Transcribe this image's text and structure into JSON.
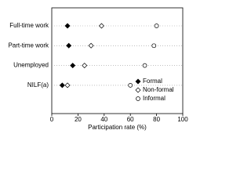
{
  "chart_data": {
    "type": "dot",
    "xlabel": "Participation rate (%)",
    "categories": [
      "Full-time work",
      "Part-time work",
      "Unemployed",
      "NILF(a)"
    ],
    "series": [
      {
        "name": "Formal",
        "color": "#000000",
        "marker": "diamond",
        "filled": true,
        "values": [
          12,
          13,
          16,
          8
        ]
      },
      {
        "name": "Non-formal",
        "color": "#000000",
        "marker": "diamond",
        "filled": false,
        "values": [
          38,
          30,
          25,
          12
        ]
      },
      {
        "name": "Informal",
        "color": "#000000",
        "marker": "circle",
        "filled": false,
        "values": [
          80,
          78,
          71,
          60
        ]
      }
    ],
    "xlim": [
      0,
      100
    ],
    "xticks": [
      0,
      20,
      40,
      60,
      80,
      100
    ]
  }
}
